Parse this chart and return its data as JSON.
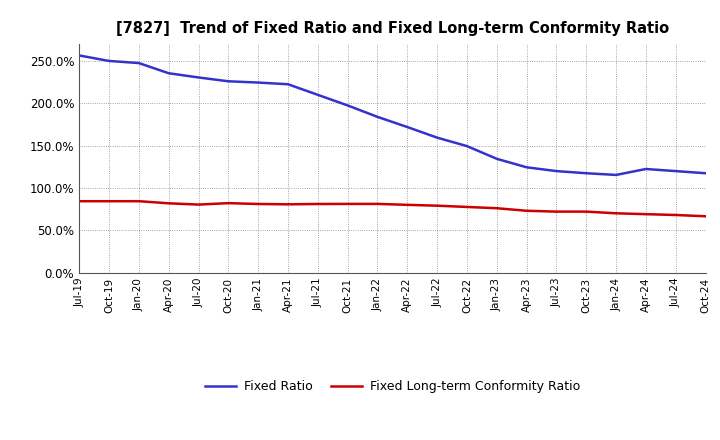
{
  "title": "[7827]  Trend of Fixed Ratio and Fixed Long-term Conformity Ratio",
  "x_labels": [
    "Jul-19",
    "Oct-19",
    "Jan-20",
    "Apr-20",
    "Jul-20",
    "Oct-20",
    "Jan-21",
    "Apr-21",
    "Jul-21",
    "Oct-21",
    "Jan-22",
    "Apr-22",
    "Jul-22",
    "Oct-22",
    "Jan-23",
    "Apr-23",
    "Jul-23",
    "Oct-23",
    "Jan-24",
    "Apr-24",
    "Jul-24",
    "Oct-24"
  ],
  "fixed_ratio": [
    2.565,
    2.5,
    2.475,
    2.355,
    2.305,
    2.26,
    2.245,
    2.225,
    2.1,
    1.975,
    1.84,
    1.72,
    1.595,
    1.495,
    1.345,
    1.245,
    1.2,
    1.175,
    1.155,
    1.225,
    1.2,
    1.175
  ],
  "fixed_lt_ratio": [
    0.845,
    0.845,
    0.845,
    0.82,
    0.805,
    0.822,
    0.812,
    0.808,
    0.812,
    0.813,
    0.813,
    0.802,
    0.792,
    0.777,
    0.762,
    0.732,
    0.722,
    0.722,
    0.702,
    0.692,
    0.682,
    0.667
  ],
  "fixed_ratio_color": "#3333cc",
  "fixed_lt_ratio_color": "#cc0000",
  "ylim": [
    0.0,
    2.7
  ],
  "yticks": [
    0.0,
    0.5,
    1.0,
    1.5,
    2.0,
    2.5
  ],
  "background_color": "#ffffff",
  "grid_color": "#888888",
  "legend_fixed_ratio": "Fixed Ratio",
  "legend_fixed_lt_ratio": "Fixed Long-term Conformity Ratio"
}
